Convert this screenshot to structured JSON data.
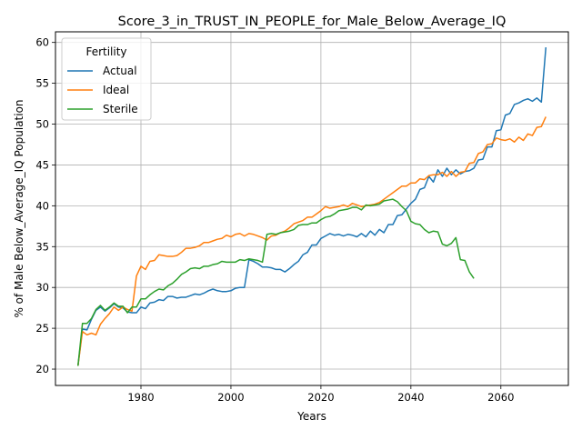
{
  "chart_data": {
    "type": "line",
    "title": "Score_3_in_TRUST_IN_PEOPLE_for_Male_Below_Average_IQ",
    "xlabel": "Years",
    "ylabel": "% of Male Below_Average_IQ Population",
    "xlim": [
      1961,
      2075
    ],
    "ylim": [
      18.0,
      61.3
    ],
    "xticks": [
      1980,
      2000,
      2020,
      2040,
      2060
    ],
    "yticks": [
      20,
      25,
      30,
      35,
      40,
      45,
      50,
      55,
      60
    ],
    "grid": true,
    "legend": {
      "title": "Fertility",
      "placement": "top-left"
    },
    "series": [
      {
        "name": "Actual",
        "color": "#1f77b4",
        "points": [
          [
            1966,
            20.4
          ],
          [
            1967,
            24.9
          ],
          [
            1968,
            24.8
          ],
          [
            1969,
            26.1
          ],
          [
            1970,
            27.2
          ],
          [
            1971,
            27.6
          ],
          [
            1972,
            27.1
          ],
          [
            1973,
            27.5
          ],
          [
            1974,
            28.0
          ],
          [
            1975,
            27.6
          ],
          [
            1976,
            27.5
          ],
          [
            1977,
            27.0
          ],
          [
            1978,
            26.9
          ],
          [
            1979,
            26.9
          ],
          [
            1980,
            27.6
          ],
          [
            1981,
            27.4
          ],
          [
            1982,
            28.1
          ],
          [
            1983,
            28.2
          ],
          [
            1984,
            28.5
          ],
          [
            1985,
            28.4
          ],
          [
            1986,
            28.9
          ],
          [
            1987,
            28.9
          ],
          [
            1988,
            28.7
          ],
          [
            1989,
            28.8
          ],
          [
            1990,
            28.8
          ],
          [
            1991,
            29.0
          ],
          [
            1992,
            29.2
          ],
          [
            1993,
            29.1
          ],
          [
            1994,
            29.3
          ],
          [
            1995,
            29.6
          ],
          [
            1996,
            29.8
          ],
          [
            1997,
            29.6
          ],
          [
            1998,
            29.5
          ],
          [
            1999,
            29.5
          ],
          [
            2000,
            29.6
          ],
          [
            2001,
            29.9
          ],
          [
            2002,
            30.0
          ],
          [
            2003,
            30.0
          ],
          [
            2004,
            33.4
          ],
          [
            2005,
            33.2
          ],
          [
            2006,
            32.9
          ],
          [
            2007,
            32.5
          ],
          [
            2008,
            32.5
          ],
          [
            2009,
            32.4
          ],
          [
            2010,
            32.2
          ],
          [
            2011,
            32.2
          ],
          [
            2012,
            31.9
          ],
          [
            2013,
            32.3
          ],
          [
            2014,
            32.8
          ],
          [
            2015,
            33.2
          ],
          [
            2016,
            34.0
          ],
          [
            2017,
            34.3
          ],
          [
            2018,
            35.2
          ],
          [
            2019,
            35.2
          ],
          [
            2020,
            36.0
          ],
          [
            2021,
            36.3
          ],
          [
            2022,
            36.6
          ],
          [
            2023,
            36.4
          ],
          [
            2024,
            36.5
          ],
          [
            2025,
            36.3
          ],
          [
            2026,
            36.5
          ],
          [
            2027,
            36.4
          ],
          [
            2028,
            36.2
          ],
          [
            2029,
            36.6
          ],
          [
            2030,
            36.2
          ],
          [
            2031,
            36.9
          ],
          [
            2032,
            36.4
          ],
          [
            2033,
            37.1
          ],
          [
            2034,
            36.7
          ],
          [
            2035,
            37.7
          ],
          [
            2036,
            37.7
          ],
          [
            2037,
            38.8
          ],
          [
            2038,
            38.9
          ],
          [
            2039,
            39.6
          ],
          [
            2040,
            40.3
          ],
          [
            2041,
            40.8
          ],
          [
            2042,
            42.0
          ],
          [
            2043,
            42.2
          ],
          [
            2044,
            43.6
          ],
          [
            2045,
            42.9
          ],
          [
            2046,
            44.4
          ],
          [
            2047,
            43.6
          ],
          [
            2048,
            44.6
          ],
          [
            2049,
            43.8
          ],
          [
            2050,
            44.4
          ],
          [
            2051,
            43.9
          ],
          [
            2052,
            44.2
          ],
          [
            2053,
            44.3
          ],
          [
            2054,
            44.6
          ],
          [
            2055,
            45.6
          ],
          [
            2056,
            45.7
          ],
          [
            2057,
            47.2
          ],
          [
            2058,
            47.2
          ],
          [
            2059,
            49.2
          ],
          [
            2060,
            49.3
          ],
          [
            2061,
            51.1
          ],
          [
            2062,
            51.3
          ],
          [
            2063,
            52.4
          ],
          [
            2064,
            52.6
          ],
          [
            2065,
            52.9
          ],
          [
            2066,
            53.1
          ],
          [
            2067,
            52.8
          ],
          [
            2068,
            53.2
          ],
          [
            2069,
            52.7
          ],
          [
            2070,
            59.4
          ]
        ]
      },
      {
        "name": "Ideal",
        "color": "#ff7f0e",
        "points": [
          [
            1966,
            20.4
          ],
          [
            1967,
            24.6
          ],
          [
            1968,
            24.2
          ],
          [
            1969,
            24.4
          ],
          [
            1970,
            24.2
          ],
          [
            1971,
            25.5
          ],
          [
            1972,
            26.2
          ],
          [
            1973,
            26.8
          ],
          [
            1974,
            27.6
          ],
          [
            1975,
            27.2
          ],
          [
            1976,
            27.6
          ],
          [
            1977,
            27.3
          ],
          [
            1978,
            27.1
          ],
          [
            1979,
            31.4
          ],
          [
            1980,
            32.6
          ],
          [
            1981,
            32.2
          ],
          [
            1982,
            33.2
          ],
          [
            1983,
            33.3
          ],
          [
            1984,
            34.0
          ],
          [
            1985,
            33.9
          ],
          [
            1986,
            33.8
          ],
          [
            1987,
            33.8
          ],
          [
            1988,
            33.9
          ],
          [
            1989,
            34.3
          ],
          [
            1990,
            34.8
          ],
          [
            1991,
            34.8
          ],
          [
            1992,
            34.9
          ],
          [
            1993,
            35.1
          ],
          [
            1994,
            35.5
          ],
          [
            1995,
            35.5
          ],
          [
            1996,
            35.7
          ],
          [
            1997,
            35.9
          ],
          [
            1998,
            36.0
          ],
          [
            1999,
            36.4
          ],
          [
            2000,
            36.2
          ],
          [
            2001,
            36.5
          ],
          [
            2002,
            36.6
          ],
          [
            2003,
            36.3
          ],
          [
            2004,
            36.6
          ],
          [
            2005,
            36.5
          ],
          [
            2006,
            36.3
          ],
          [
            2007,
            36.1
          ],
          [
            2008,
            35.8
          ],
          [
            2009,
            36.3
          ],
          [
            2010,
            36.4
          ],
          [
            2011,
            36.7
          ],
          [
            2012,
            36.9
          ],
          [
            2013,
            37.3
          ],
          [
            2014,
            37.8
          ],
          [
            2015,
            38.0
          ],
          [
            2016,
            38.2
          ],
          [
            2017,
            38.6
          ],
          [
            2018,
            38.6
          ],
          [
            2019,
            39.0
          ],
          [
            2020,
            39.4
          ],
          [
            2021,
            39.9
          ],
          [
            2022,
            39.7
          ],
          [
            2023,
            39.8
          ],
          [
            2024,
            39.9
          ],
          [
            2025,
            40.1
          ],
          [
            2026,
            39.9
          ],
          [
            2027,
            40.3
          ],
          [
            2028,
            40.1
          ],
          [
            2029,
            39.9
          ],
          [
            2030,
            40.0
          ],
          [
            2031,
            40.1
          ],
          [
            2032,
            40.2
          ],
          [
            2033,
            40.4
          ],
          [
            2034,
            40.8
          ],
          [
            2035,
            41.2
          ],
          [
            2036,
            41.6
          ],
          [
            2037,
            42.0
          ],
          [
            2038,
            42.4
          ],
          [
            2039,
            42.4
          ],
          [
            2040,
            42.8
          ],
          [
            2041,
            42.8
          ],
          [
            2042,
            43.3
          ],
          [
            2043,
            43.2
          ],
          [
            2044,
            43.7
          ],
          [
            2045,
            43.8
          ],
          [
            2046,
            43.8
          ],
          [
            2047,
            44.1
          ],
          [
            2048,
            43.6
          ],
          [
            2049,
            44.2
          ],
          [
            2050,
            43.6
          ],
          [
            2051,
            44.1
          ],
          [
            2052,
            44.2
          ],
          [
            2053,
            45.2
          ],
          [
            2054,
            45.3
          ],
          [
            2055,
            46.4
          ],
          [
            2056,
            46.6
          ],
          [
            2057,
            47.5
          ],
          [
            2058,
            47.6
          ],
          [
            2059,
            48.3
          ],
          [
            2060,
            48.1
          ],
          [
            2061,
            48.0
          ],
          [
            2062,
            48.2
          ],
          [
            2063,
            47.8
          ],
          [
            2064,
            48.4
          ],
          [
            2065,
            48.0
          ],
          [
            2066,
            48.8
          ],
          [
            2067,
            48.6
          ],
          [
            2068,
            49.6
          ],
          [
            2069,
            49.7
          ],
          [
            2070,
            50.9
          ]
        ]
      },
      {
        "name": "Sterile",
        "color": "#2ca02c",
        "points": [
          [
            1966,
            20.4
          ],
          [
            1967,
            25.6
          ],
          [
            1968,
            25.6
          ],
          [
            1969,
            26.2
          ],
          [
            1970,
            27.3
          ],
          [
            1971,
            27.8
          ],
          [
            1972,
            27.2
          ],
          [
            1973,
            27.6
          ],
          [
            1974,
            28.1
          ],
          [
            1975,
            27.7
          ],
          [
            1976,
            27.7
          ],
          [
            1977,
            26.9
          ],
          [
            1978,
            27.6
          ],
          [
            1979,
            27.6
          ],
          [
            1980,
            28.6
          ],
          [
            1981,
            28.6
          ],
          [
            1982,
            29.1
          ],
          [
            1983,
            29.5
          ],
          [
            1984,
            29.8
          ],
          [
            1985,
            29.7
          ],
          [
            1986,
            30.2
          ],
          [
            1987,
            30.5
          ],
          [
            1988,
            31.0
          ],
          [
            1989,
            31.6
          ],
          [
            1990,
            31.9
          ],
          [
            1991,
            32.3
          ],
          [
            1992,
            32.4
          ],
          [
            1993,
            32.3
          ],
          [
            1994,
            32.6
          ],
          [
            1995,
            32.6
          ],
          [
            1996,
            32.8
          ],
          [
            1997,
            32.9
          ],
          [
            1998,
            33.2
          ],
          [
            1999,
            33.1
          ],
          [
            2000,
            33.1
          ],
          [
            2001,
            33.1
          ],
          [
            2002,
            33.4
          ],
          [
            2003,
            33.3
          ],
          [
            2004,
            33.5
          ],
          [
            2005,
            33.4
          ],
          [
            2006,
            33.3
          ],
          [
            2007,
            33.1
          ],
          [
            2008,
            36.5
          ],
          [
            2009,
            36.6
          ],
          [
            2010,
            36.5
          ],
          [
            2011,
            36.7
          ],
          [
            2012,
            36.8
          ],
          [
            2013,
            36.9
          ],
          [
            2014,
            37.1
          ],
          [
            2015,
            37.6
          ],
          [
            2016,
            37.7
          ],
          [
            2017,
            37.7
          ],
          [
            2018,
            37.9
          ],
          [
            2019,
            37.9
          ],
          [
            2020,
            38.3
          ],
          [
            2021,
            38.6
          ],
          [
            2022,
            38.7
          ],
          [
            2023,
            39.0
          ],
          [
            2024,
            39.4
          ],
          [
            2025,
            39.5
          ],
          [
            2026,
            39.6
          ],
          [
            2027,
            39.8
          ],
          [
            2028,
            39.8
          ],
          [
            2029,
            39.5
          ],
          [
            2030,
            40.1
          ],
          [
            2031,
            40.0
          ],
          [
            2032,
            40.1
          ],
          [
            2033,
            40.2
          ],
          [
            2034,
            40.6
          ],
          [
            2035,
            40.7
          ],
          [
            2036,
            40.8
          ],
          [
            2037,
            40.5
          ],
          [
            2038,
            39.9
          ],
          [
            2039,
            39.4
          ],
          [
            2040,
            38.1
          ],
          [
            2041,
            37.8
          ],
          [
            2042,
            37.7
          ],
          [
            2043,
            37.1
          ],
          [
            2044,
            36.7
          ],
          [
            2045,
            36.9
          ],
          [
            2046,
            36.8
          ],
          [
            2047,
            35.3
          ],
          [
            2048,
            35.1
          ],
          [
            2049,
            35.4
          ],
          [
            2050,
            36.1
          ],
          [
            2051,
            33.4
          ],
          [
            2052,
            33.3
          ],
          [
            2053,
            31.9
          ],
          [
            2054,
            31.1
          ]
        ]
      }
    ]
  }
}
